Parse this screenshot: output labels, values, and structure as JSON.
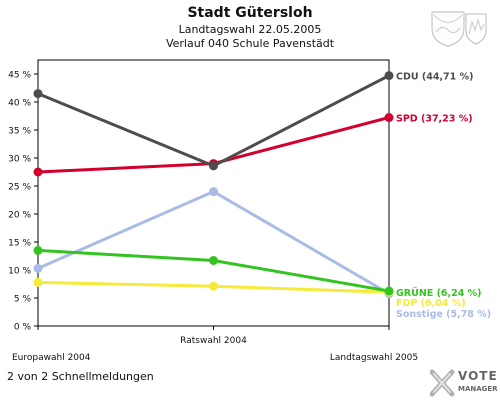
{
  "header": {
    "title": "Stadt Gütersloh",
    "subtitle": "Landtagswahl 22.05.2005",
    "subtitle2": "Verlauf 040 Schule Pavenstädt"
  },
  "footer": {
    "text": "2 von 2 Schnellmeldungen"
  },
  "logo": {
    "line1": "VOTE",
    "line2": "MANAGER"
  },
  "chart_data": {
    "type": "line",
    "categories": [
      "Europawahl 2004",
      "Ratswahl 2004",
      "Landtagswahl 2005"
    ],
    "ylim": [
      0,
      47.5
    ],
    "yticks": [
      0,
      5,
      10,
      15,
      20,
      25,
      30,
      35,
      40,
      45
    ],
    "ytick_labels": [
      "0 %",
      "5 %",
      "10 %",
      "15 %",
      "20 %",
      "25 %",
      "30 %",
      "35 %",
      "40 %",
      "45 %"
    ],
    "grid": false,
    "series": [
      {
        "name": "Sonstige",
        "end_label": "Sonstige (5,78 %)",
        "color": "#aabce6",
        "values": [
          10.3,
          24.0,
          5.78
        ]
      },
      {
        "name": "FDP",
        "end_label": "FDP (6,04 %)",
        "color": "#f6ea3a",
        "values": [
          7.8,
          7.1,
          6.04
        ]
      },
      {
        "name": "GRÜNE",
        "end_label": "GRÜNE (6,24 %)",
        "color": "#33c421",
        "values": [
          13.5,
          11.7,
          6.24
        ]
      },
      {
        "name": "SPD",
        "end_label": "SPD (37,23 %)",
        "color": "#d3002e",
        "values": [
          27.5,
          29.0,
          37.23
        ]
      },
      {
        "name": "CDU",
        "end_label": "CDU (44,71 %)",
        "color": "#4d4d4d",
        "values": [
          41.5,
          28.6,
          44.71
        ]
      }
    ]
  }
}
